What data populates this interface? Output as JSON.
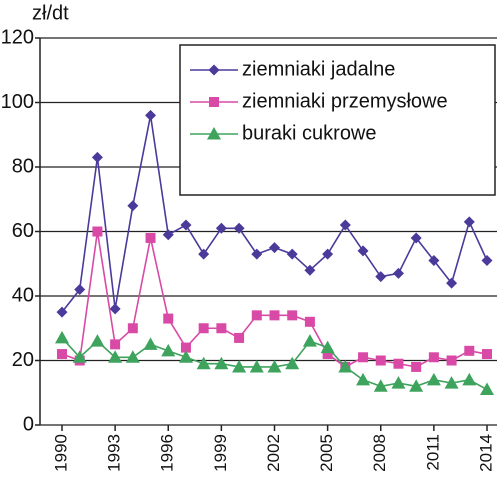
{
  "chart_data": {
    "type": "line",
    "y_label": "zł/dt",
    "x": [
      1990,
      1991,
      1992,
      1993,
      1994,
      1995,
      1996,
      1997,
      1998,
      1999,
      2000,
      2001,
      2002,
      2003,
      2004,
      2005,
      2006,
      2007,
      2008,
      2009,
      2010,
      2011,
      2012,
      2013,
      2014
    ],
    "series": [
      {
        "name": "ziemniaki jadalne",
        "color": "#4b3a9a",
        "marker": "diamond",
        "values": [
          35,
          42,
          83,
          36,
          68,
          96,
          59,
          62,
          53,
          61,
          61,
          53,
          55,
          53,
          48,
          53,
          62,
          54,
          46,
          47,
          58,
          51,
          44,
          63,
          51
        ]
      },
      {
        "name": "ziemniaki przemysłowe",
        "color": "#d84aa6",
        "marker": "square",
        "values": [
          22,
          20,
          60,
          25,
          30,
          58,
          33,
          24,
          30,
          30,
          27,
          34,
          34,
          34,
          32,
          22,
          18,
          21,
          20,
          19,
          18,
          21,
          20,
          23,
          22
        ]
      },
      {
        "name": "buraki cukrowe",
        "color": "#3ea35c",
        "marker": "triangle",
        "values": [
          27,
          21,
          26,
          21,
          21,
          25,
          23,
          21,
          19,
          19,
          18,
          18,
          18,
          19,
          26,
          24,
          18,
          14,
          12,
          13,
          12,
          14,
          13,
          14,
          11
        ]
      }
    ],
    "xlim": [
      1990,
      2014
    ],
    "xticks": [
      1990,
      1993,
      1996,
      1999,
      2002,
      2005,
      2008,
      2011,
      2014
    ],
    "ylim": [
      0,
      120
    ],
    "yticks": [
      0,
      20,
      40,
      60,
      80,
      100,
      120
    ],
    "grid": true,
    "legend": "top-right"
  }
}
